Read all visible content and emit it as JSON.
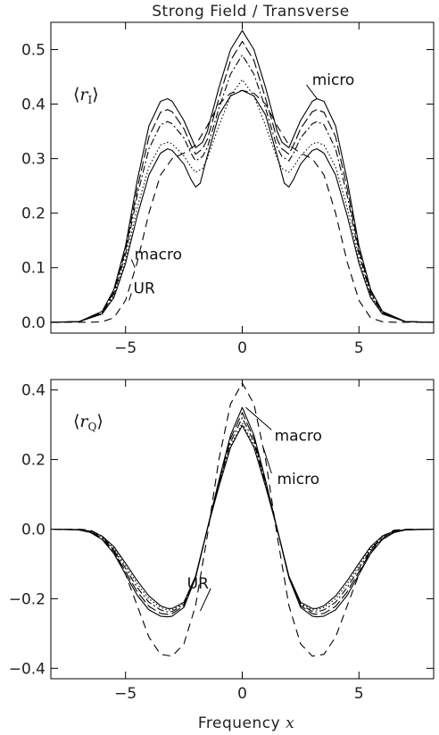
{
  "title": "Strong Field / Transverse",
  "xlabel": {
    "text": "Frequency ",
    "var": "x"
  },
  "chart_data": [
    {
      "type": "line",
      "panel_label": {
        "open": "⟨",
        "var": "r",
        "sub": "I",
        "close": "⟩"
      },
      "xlim": [
        -8.2,
        8.2
      ],
      "ylim": [
        -0.02,
        0.55
      ],
      "xticks": [
        -5,
        0,
        5
      ],
      "xtick_labels": [
        "−5",
        "0",
        "5"
      ],
      "yticks": [
        0.0,
        0.1,
        0.2,
        0.3,
        0.4,
        0.5
      ],
      "ytick_labels": [
        "0.0",
        "0.1",
        "0.2",
        "0.3",
        "0.4",
        "0.5"
      ],
      "series": [
        {
          "style": "solid",
          "x": [
            -8.2,
            -7,
            -6,
            -5.5,
            -5,
            -4.5,
            -4,
            -3.5,
            -3.2,
            -3,
            -2.5,
            -2.2,
            -2,
            -1.7,
            -1.5,
            -1,
            -0.5,
            0,
            0.5,
            1,
            1.5,
            1.7,
            2,
            2.2,
            2.5,
            3,
            3.2,
            3.5,
            4,
            4.5,
            5,
            5.5,
            6,
            7,
            8.2
          ],
          "y": [
            0.0,
            0.001,
            0.02,
            0.06,
            0.14,
            0.26,
            0.36,
            0.405,
            0.41,
            0.405,
            0.37,
            0.34,
            0.32,
            0.33,
            0.35,
            0.43,
            0.5,
            0.535,
            0.5,
            0.43,
            0.35,
            0.33,
            0.32,
            0.34,
            0.37,
            0.405,
            0.41,
            0.405,
            0.36,
            0.26,
            0.14,
            0.06,
            0.02,
            0.001,
            0.0
          ]
        },
        {
          "style": "long-dash",
          "x": [
            -8.2,
            -7,
            -6,
            -5.5,
            -5,
            -4.5,
            -4,
            -3.5,
            -3.2,
            -3,
            -2.5,
            -2.2,
            -2,
            -1.7,
            -1.5,
            -1,
            -0.5,
            0,
            0.5,
            1,
            1.5,
            1.7,
            2,
            2.2,
            2.5,
            3,
            3.2,
            3.5,
            4,
            4.5,
            5,
            5.5,
            6,
            7,
            8.2
          ],
          "y": [
            0.0,
            0.001,
            0.018,
            0.056,
            0.132,
            0.245,
            0.34,
            0.385,
            0.39,
            0.386,
            0.355,
            0.325,
            0.308,
            0.318,
            0.335,
            0.41,
            0.48,
            0.515,
            0.48,
            0.41,
            0.335,
            0.318,
            0.308,
            0.325,
            0.355,
            0.386,
            0.39,
            0.385,
            0.34,
            0.245,
            0.132,
            0.056,
            0.018,
            0.001,
            0.0
          ]
        },
        {
          "style": "dash-dot",
          "x": [
            -8.2,
            -7,
            -6,
            -5.5,
            -5,
            -4.5,
            -4,
            -3.5,
            -3.2,
            -3,
            -2.5,
            -2.2,
            -2,
            -1.7,
            -1.5,
            -1,
            -0.5,
            0,
            0.5,
            1,
            1.5,
            1.7,
            2,
            2.2,
            2.5,
            3,
            3.2,
            3.5,
            4,
            4.5,
            5,
            5.5,
            6,
            7,
            8.2
          ],
          "y": [
            0.0,
            0.001,
            0.017,
            0.052,
            0.125,
            0.232,
            0.318,
            0.362,
            0.368,
            0.364,
            0.338,
            0.31,
            0.296,
            0.304,
            0.32,
            0.392,
            0.455,
            0.49,
            0.455,
            0.392,
            0.32,
            0.304,
            0.296,
            0.31,
            0.338,
            0.364,
            0.368,
            0.362,
            0.318,
            0.232,
            0.125,
            0.052,
            0.017,
            0.001,
            0.0
          ]
        },
        {
          "style": "dotted",
          "x": [
            -8.2,
            -7,
            -6,
            -5.5,
            -5,
            -4.5,
            -4,
            -3.5,
            -3.2,
            -3,
            -2.5,
            -2.2,
            -2,
            -1.7,
            -1.5,
            -1,
            -0.5,
            0,
            0.5,
            1,
            1.5,
            1.7,
            2,
            2.2,
            2.5,
            3,
            3.2,
            3.5,
            4,
            4.5,
            5,
            5.5,
            6,
            7,
            8.2
          ],
          "y": [
            0.0,
            0.001,
            0.016,
            0.048,
            0.115,
            0.21,
            0.285,
            0.325,
            0.33,
            0.327,
            0.305,
            0.285,
            0.275,
            0.282,
            0.3,
            0.36,
            0.415,
            0.445,
            0.415,
            0.36,
            0.3,
            0.282,
            0.275,
            0.285,
            0.305,
            0.327,
            0.33,
            0.325,
            0.285,
            0.21,
            0.115,
            0.048,
            0.016,
            0.001,
            0.0
          ]
        },
        {
          "style": "solid",
          "x": [
            -8.2,
            -7,
            -6,
            -5.5,
            -5,
            -4.5,
            -4,
            -3.5,
            -3.2,
            -3,
            -2.5,
            -2.2,
            -2,
            -1.8,
            -1.5,
            -1,
            -0.5,
            0,
            0.5,
            1,
            1.5,
            1.8,
            2,
            2.2,
            2.5,
            3,
            3.2,
            3.5,
            4,
            4.5,
            5,
            5.5,
            6,
            7,
            8.2
          ],
          "y": [
            0.0,
            0.001,
            0.015,
            0.045,
            0.108,
            0.195,
            0.27,
            0.31,
            0.318,
            0.315,
            0.29,
            0.262,
            0.248,
            0.255,
            0.305,
            0.38,
            0.415,
            0.425,
            0.415,
            0.38,
            0.305,
            0.255,
            0.248,
            0.262,
            0.29,
            0.315,
            0.318,
            0.31,
            0.27,
            0.195,
            0.108,
            0.045,
            0.015,
            0.001,
            0.0
          ]
        },
        {
          "style": "dash",
          "x": [
            -8.2,
            -6.5,
            -6,
            -5.5,
            -5,
            -4.5,
            -4,
            -3.5,
            -3,
            -2.5,
            -2,
            -1.5,
            -1,
            -0.5,
            0,
            0.5,
            1,
            1.5,
            2,
            2.5,
            3,
            3.5,
            4,
            4.5,
            5,
            5.5,
            6,
            6.5,
            8.2
          ],
          "y": [
            0.0,
            0.0,
            0.001,
            0.008,
            0.04,
            0.11,
            0.2,
            0.27,
            0.3,
            0.31,
            0.325,
            0.36,
            0.4,
            0.42,
            0.425,
            0.42,
            0.4,
            0.36,
            0.325,
            0.31,
            0.3,
            0.27,
            0.2,
            0.11,
            0.04,
            0.008,
            0.001,
            0.0,
            0.0
          ]
        }
      ],
      "annotations": [
        {
          "text": "micro",
          "x": 3.9,
          "y": 0.445,
          "ptr": [
            3.2,
            0.41
          ]
        },
        {
          "text": "macro",
          "x": -3.6,
          "y": 0.125,
          "ptr": [
            -4.6,
            0.1
          ]
        },
        {
          "text": "UR",
          "x": -4.2,
          "y": 0.063,
          "ptr": [
            -4.85,
            0.04
          ]
        }
      ]
    },
    {
      "type": "line",
      "panel_label": {
        "open": "⟨",
        "var": "r",
        "sub": "Q",
        "close": "⟩"
      },
      "xlim": [
        -8.2,
        8.2
      ],
      "ylim": [
        -0.43,
        0.43
      ],
      "xticks": [
        -5,
        0,
        5
      ],
      "xtick_labels": [
        "−5",
        "0",
        "5"
      ],
      "yticks": [
        -0.4,
        -0.2,
        0.0,
        0.2,
        0.4
      ],
      "ytick_labels": [
        "−0.4",
        "−0.2",
        "0.0",
        "0.2",
        "0.4"
      ],
      "series": [
        {
          "style": "solid",
          "x": [
            -8.2,
            -7,
            -6.5,
            -6,
            -5.5,
            -5,
            -4.5,
            -4,
            -3.5,
            -3.2,
            -3,
            -2.5,
            -2,
            -1.5,
            -1,
            -0.5,
            0,
            0.5,
            1,
            1.5,
            2,
            2.5,
            3,
            3.2,
            3.5,
            4,
            4.5,
            5,
            5.5,
            6,
            6.5,
            7,
            8.2
          ],
          "y": [
            0.0,
            -0.002,
            -0.01,
            -0.03,
            -0.07,
            -0.13,
            -0.19,
            -0.232,
            -0.25,
            -0.252,
            -0.25,
            -0.225,
            -0.14,
            0.0,
            0.14,
            0.27,
            0.35,
            0.27,
            0.14,
            0.0,
            -0.14,
            -0.225,
            -0.25,
            -0.252,
            -0.25,
            -0.232,
            -0.19,
            -0.13,
            -0.07,
            -0.03,
            -0.01,
            -0.002,
            0.0
          ]
        },
        {
          "style": "long-dash",
          "x": [
            -8.2,
            -7,
            -6.5,
            -6,
            -5.5,
            -5,
            -4.5,
            -4,
            -3.5,
            -3.2,
            -3,
            -2.5,
            -2,
            -1.5,
            -1,
            -0.5,
            0,
            0.5,
            1,
            1.5,
            2,
            2.5,
            3,
            3.2,
            3.5,
            4,
            4.5,
            5,
            5.5,
            6,
            6.5,
            7,
            8.2
          ],
          "y": [
            0.0,
            -0.002,
            -0.009,
            -0.028,
            -0.065,
            -0.122,
            -0.18,
            -0.222,
            -0.242,
            -0.245,
            -0.243,
            -0.22,
            -0.138,
            0.0,
            0.135,
            0.26,
            0.335,
            0.26,
            0.135,
            0.0,
            -0.138,
            -0.22,
            -0.243,
            -0.245,
            -0.242,
            -0.222,
            -0.18,
            -0.122,
            -0.065,
            -0.028,
            -0.009,
            -0.002,
            0.0
          ]
        },
        {
          "style": "dash-dot",
          "x": [
            -8.2,
            -7,
            -6.5,
            -6,
            -5.5,
            -5,
            -4.5,
            -4,
            -3.5,
            -3.2,
            -3,
            -2.5,
            -2,
            -1.5,
            -1,
            -0.5,
            0,
            0.5,
            1,
            1.5,
            2,
            2.5,
            3,
            3.2,
            3.5,
            4,
            4.5,
            5,
            5.5,
            6,
            6.5,
            7,
            8.2
          ],
          "y": [
            0.0,
            -0.002,
            -0.008,
            -0.025,
            -0.06,
            -0.113,
            -0.168,
            -0.21,
            -0.232,
            -0.238,
            -0.237,
            -0.216,
            -0.137,
            0.0,
            0.13,
            0.25,
            0.32,
            0.25,
            0.13,
            0.0,
            -0.137,
            -0.216,
            -0.237,
            -0.238,
            -0.232,
            -0.21,
            -0.168,
            -0.113,
            -0.06,
            -0.025,
            -0.008,
            -0.002,
            0.0
          ]
        },
        {
          "style": "dotted",
          "x": [
            -8.2,
            -7,
            -6.5,
            -6,
            -5.5,
            -5,
            -4.5,
            -4,
            -3.5,
            -3.2,
            -3,
            -2.5,
            -2,
            -1.5,
            -1,
            -0.5,
            0,
            0.5,
            1,
            1.5,
            2,
            2.5,
            3,
            3.2,
            3.5,
            4,
            4.5,
            5,
            5.5,
            6,
            6.5,
            7,
            8.2
          ],
          "y": [
            0.0,
            -0.002,
            -0.007,
            -0.022,
            -0.055,
            -0.105,
            -0.157,
            -0.2,
            -0.225,
            -0.232,
            -0.232,
            -0.213,
            -0.136,
            0.0,
            0.125,
            0.24,
            0.305,
            0.24,
            0.125,
            0.0,
            -0.136,
            -0.213,
            -0.232,
            -0.232,
            -0.225,
            -0.2,
            -0.157,
            -0.105,
            -0.055,
            -0.022,
            -0.007,
            -0.002,
            0.0
          ]
        },
        {
          "style": "solid",
          "x": [
            -8.2,
            -7,
            -6.5,
            -6,
            -5.5,
            -5,
            -4.5,
            -4,
            -3.5,
            -3.2,
            -3,
            -2.5,
            -2,
            -1.5,
            -1,
            -0.5,
            0,
            0.5,
            1,
            1.5,
            2,
            2.5,
            3,
            3.2,
            3.5,
            4,
            4.5,
            5,
            5.5,
            6,
            6.5,
            7,
            8.2
          ],
          "y": [
            0.0,
            -0.001,
            -0.006,
            -0.02,
            -0.05,
            -0.098,
            -0.148,
            -0.192,
            -0.22,
            -0.228,
            -0.228,
            -0.21,
            -0.135,
            0.0,
            0.122,
            0.235,
            0.298,
            0.235,
            0.122,
            0.0,
            -0.135,
            -0.21,
            -0.228,
            -0.228,
            -0.22,
            -0.192,
            -0.148,
            -0.098,
            -0.05,
            -0.02,
            -0.006,
            -0.001,
            0.0
          ]
        },
        {
          "style": "dash",
          "x": [
            -8.2,
            -7,
            -6.5,
            -6,
            -5.5,
            -5,
            -4.5,
            -4,
            -3.5,
            -3,
            -2.5,
            -2,
            -1.5,
            -1,
            -0.5,
            0,
            0.5,
            1,
            1.5,
            2,
            2.5,
            3,
            3.5,
            4,
            4.5,
            5,
            5.5,
            6,
            6.5,
            7,
            8.2
          ],
          "y": [
            0.0,
            0.0,
            -0.003,
            -0.02,
            -0.06,
            -0.13,
            -0.22,
            -0.31,
            -0.36,
            -0.365,
            -0.33,
            -0.22,
            -0.02,
            0.2,
            0.36,
            0.42,
            0.36,
            0.2,
            -0.02,
            -0.22,
            -0.33,
            -0.365,
            -0.36,
            -0.31,
            -0.22,
            -0.13,
            -0.06,
            -0.02,
            -0.003,
            0.0,
            0.0
          ]
        }
      ],
      "annotations": [
        {
          "text": "macro",
          "x": 2.4,
          "y": 0.27,
          "ptr": [
            0.15,
            0.35
          ]
        },
        {
          "text": "micro",
          "x": 2.4,
          "y": 0.145,
          "ptr": [
            0.9,
            0.235
          ]
        },
        {
          "text": "UR",
          "x": -1.9,
          "y": -0.155,
          "ptr": [
            -1.8,
            -0.235
          ]
        }
      ]
    }
  ]
}
